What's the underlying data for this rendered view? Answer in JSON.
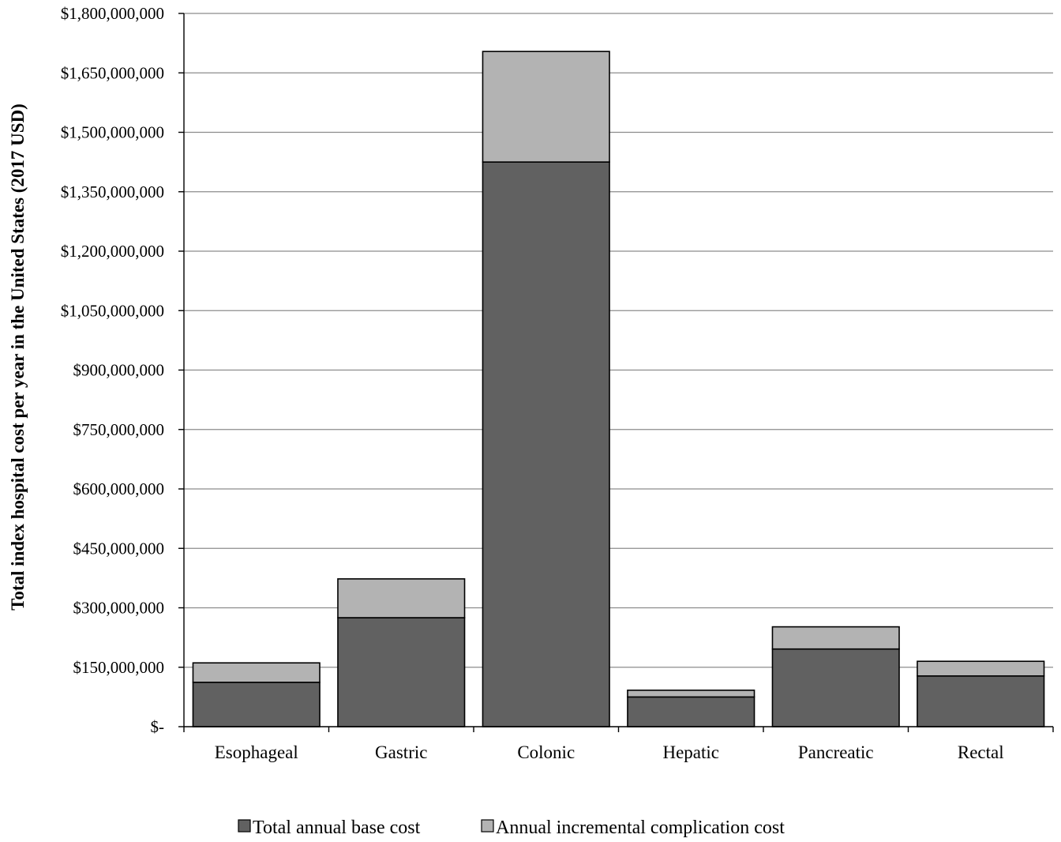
{
  "chart_data": {
    "type": "bar",
    "stacked": true,
    "title": "",
    "ylabel": "Total index hospital cost per year in the United States  (2017 USD)",
    "xlabel": "",
    "ylim": [
      0,
      1800000000
    ],
    "yticks": [
      0,
      150000000,
      300000000,
      450000000,
      600000000,
      750000000,
      900000000,
      1050000000,
      1200000000,
      1350000000,
      1500000000,
      1650000000,
      1800000000
    ],
    "ytick_labels": [
      "$-",
      "$150,000,000",
      "$300,000,000",
      "$450,000,000",
      "$600,000,000",
      "$750,000,000",
      "$900,000,000",
      "$1,050,000,000",
      "$1,200,000,000",
      "$1,350,000,000",
      "$1,500,000,000",
      "$1,650,000,000",
      "$1,800,000,000"
    ],
    "categories": [
      "Esophageal",
      "Gastric",
      "Colonic",
      "Hepatic",
      "Pancreatic",
      "Rectal"
    ],
    "series": [
      {
        "name": "Total annual base cost",
        "color": "#616161",
        "values": [
          112000000,
          275000000,
          1425000000,
          75000000,
          196000000,
          128000000
        ]
      },
      {
        "name": "Annual incremental complication cost",
        "color": "#b3b3b3",
        "values": [
          49000000,
          98000000,
          279000000,
          17000000,
          56000000,
          37000000
        ]
      }
    ],
    "grid": true,
    "legend_position": "bottom-center"
  }
}
